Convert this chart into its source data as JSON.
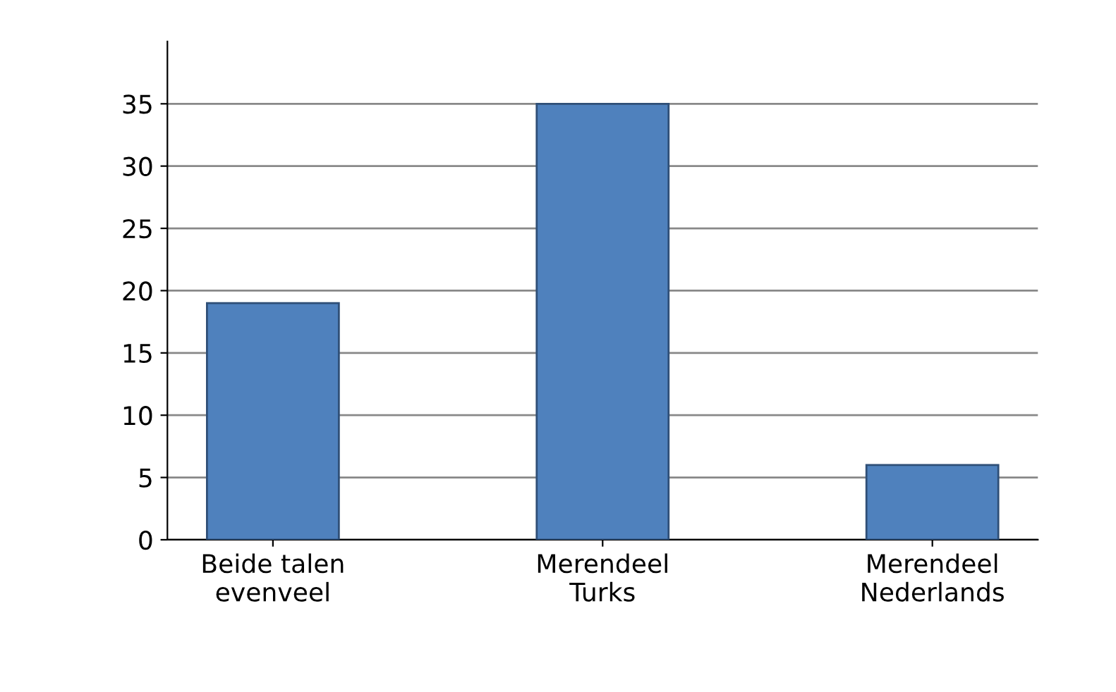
{
  "chart_data": {
    "type": "bar",
    "categories": [
      "Beide talen\nevenveel",
      "Merendeel\nTurks",
      "Merendeel\nNederlands"
    ],
    "values": [
      19,
      35,
      6
    ],
    "color": "#4f81bd",
    "ylim": [
      0,
      40
    ],
    "yticks": [
      0,
      5,
      10,
      15,
      20,
      25,
      30,
      35
    ],
    "grid": "y"
  }
}
